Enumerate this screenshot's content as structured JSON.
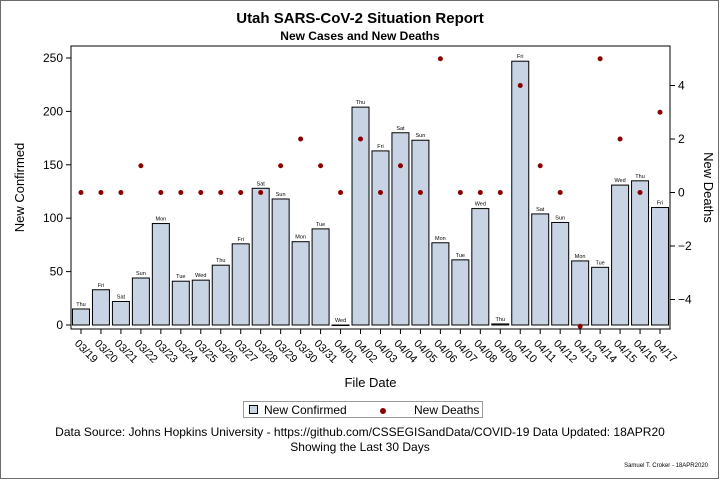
{
  "title": "Utah SARS-CoV-2 Situation Report",
  "subtitle": "New Cases and New Deaths",
  "footnote1": "Data Source: Johns Hopkins University - https://github.com/CSSEGISandData/COVID-19 Data Updated: 18APR20",
  "footnote2": "Showing the Last 30 Days",
  "credit": "Samuel T. Croker - 18APR2020",
  "legend": {
    "confirmed": "New Confirmed",
    "deaths": "New Deaths"
  },
  "colors": {
    "bar_fill": "#c8d3e3",
    "bar_stroke": "#000000",
    "deaths_marker": "#8b0000"
  },
  "chart_data": {
    "type": "bar",
    "xlabel": "File Date",
    "ylabel": "New Confirmed",
    "y2label": "New Deaths",
    "ylim": [
      0,
      250
    ],
    "yticks": [
      0,
      50,
      100,
      150,
      200,
      250
    ],
    "y2lim": [
      -5,
      5
    ],
    "y2ticks": [
      -4,
      -2,
      0,
      2,
      4
    ],
    "grid": false,
    "legend_position": "bottom",
    "categories": [
      "03/19",
      "03/20",
      "03/21",
      "03/22",
      "03/23",
      "03/24",
      "03/25",
      "03/26",
      "03/27",
      "03/28",
      "03/29",
      "03/30",
      "03/31",
      "04/01",
      "04/02",
      "04/03",
      "04/04",
      "04/05",
      "04/06",
      "04/07",
      "04/08",
      "04/09",
      "04/10",
      "04/11",
      "04/12",
      "04/13",
      "04/14",
      "04/15",
      "04/16",
      "04/17"
    ],
    "weekdays": [
      "Thu",
      "Fri",
      "Sat",
      "Sun",
      "Mon",
      "Tue",
      "Wed",
      "Thu",
      "Fri",
      "Sat",
      "Sun",
      "Mon",
      "Tue",
      "Wed",
      "Thu",
      "Fri",
      "Sat",
      "Sun",
      "Mon",
      "Tue",
      "Wed",
      "Thu",
      "Fri",
      "Sat",
      "Sun",
      "Mon",
      "Tue",
      "Wed",
      "Thu",
      "Fri"
    ],
    "series": [
      {
        "name": "New Confirmed",
        "type": "bar",
        "axis": "left",
        "values": [
          15,
          33,
          22,
          44,
          95,
          41,
          42,
          56,
          76,
          128,
          118,
          78,
          90,
          0,
          204,
          163,
          180,
          173,
          77,
          61,
          109,
          1,
          247,
          104,
          96,
          60,
          54,
          131,
          135,
          110
        ]
      },
      {
        "name": "New Deaths",
        "type": "scatter",
        "axis": "right",
        "values": [
          0,
          0,
          0,
          1,
          0,
          0,
          0,
          0,
          0,
          0,
          1,
          2,
          1,
          0,
          2,
          0,
          1,
          0,
          5,
          0,
          0,
          0,
          4,
          1,
          0,
          -5,
          5,
          2,
          0,
          3
        ]
      }
    ]
  }
}
